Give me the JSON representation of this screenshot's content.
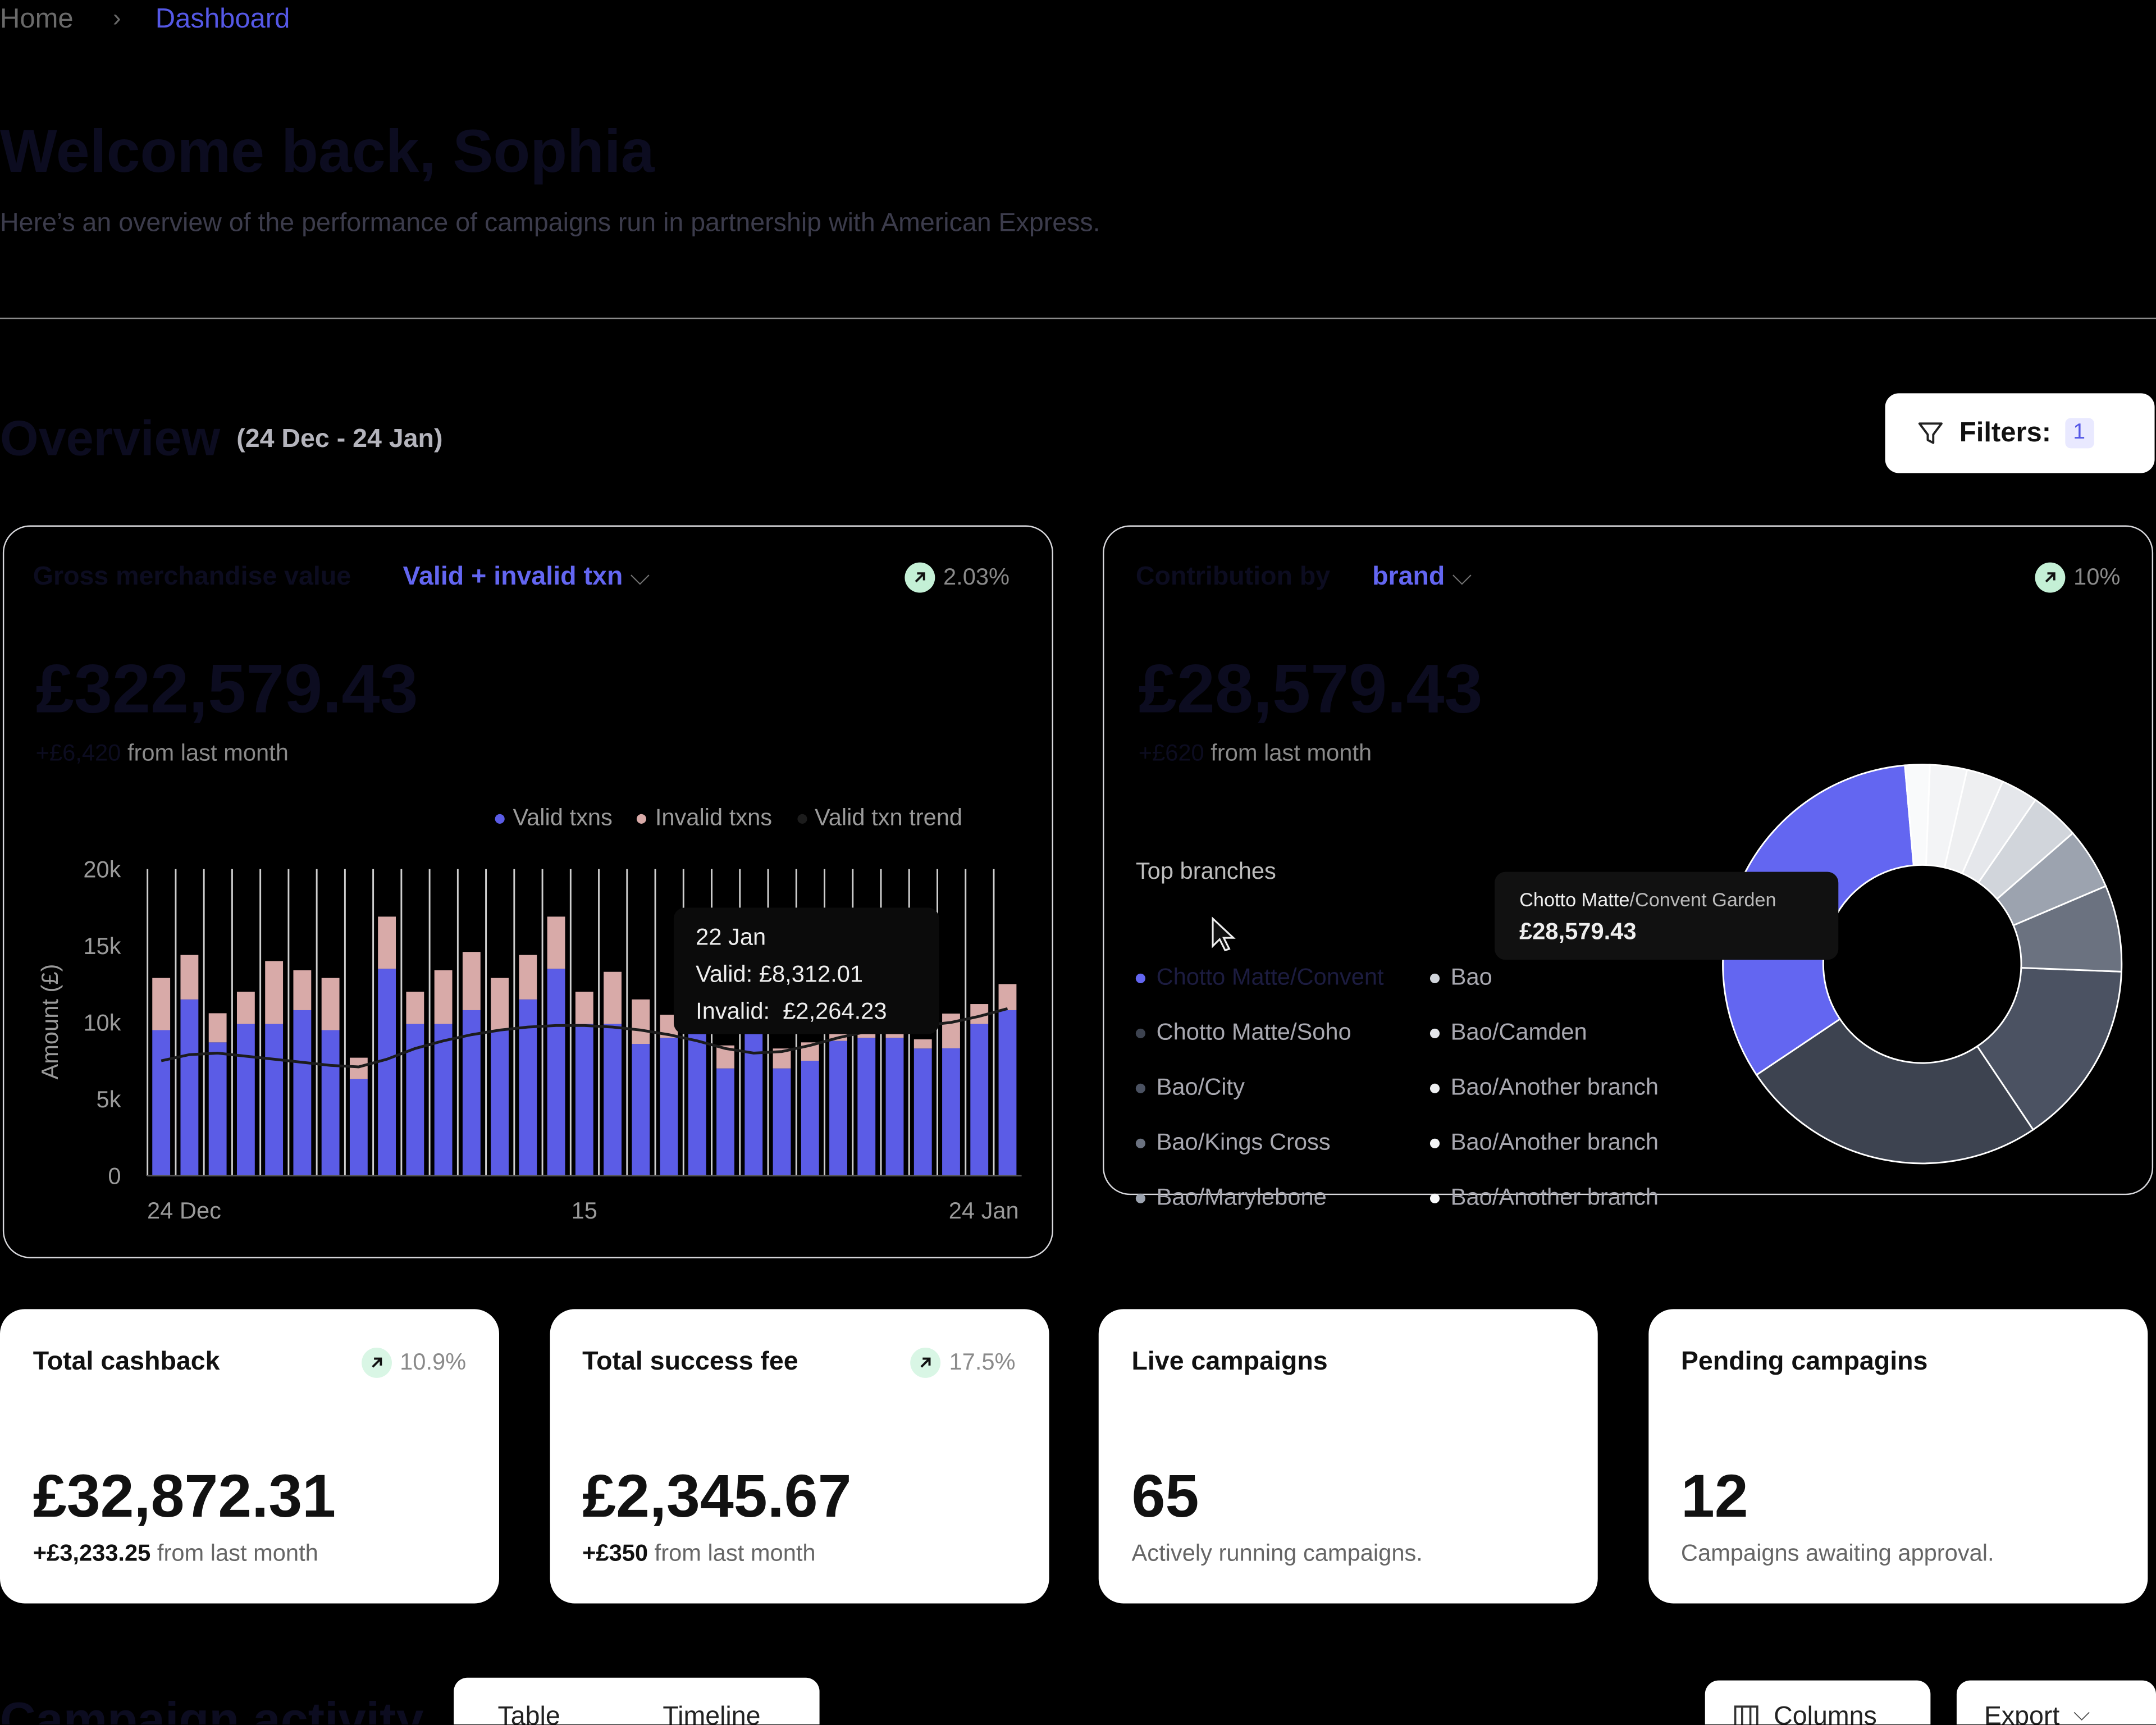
{
  "breadcrumb": {
    "home": "Home",
    "current": "Dashboard"
  },
  "header": {
    "title": "Welcome back, Sophia",
    "subtitle": "Here’s an overview of the performance of campaigns run in partnership with American Express."
  },
  "overview": {
    "title": "Overview",
    "range": "(24 Dec - 24 Jan)",
    "filters_label": "Filters:",
    "filters_count": 1
  },
  "gmv_card": {
    "title": "Gross merchandise value",
    "selector": "Valid + invalid txn",
    "trend": "2.03%",
    "amount": "£322,579.43",
    "change": "+£6,420",
    "change_suffix": "from last month",
    "chart": {
      "type": "bar",
      "stacked": true,
      "ylabel": "Amount (£)",
      "categories": [
        "24 Dec",
        null,
        null,
        null,
        null,
        null,
        null,
        null,
        null,
        null,
        null,
        null,
        null,
        null,
        null,
        "15",
        null,
        null,
        null,
        null,
        null,
        null,
        null,
        null,
        null,
        null,
        null,
        null,
        null,
        null,
        "24 Jan"
      ],
      "series": [
        {
          "name": "Valid txns",
          "color": "#5b5ce6",
          "values": [
            9500,
            11500,
            8700,
            9900,
            9900,
            10800,
            9500,
            6300,
            13500,
            9900,
            9900,
            10800,
            9500,
            11500,
            13500,
            9900,
            9900,
            8600,
            9000,
            9500,
            7000,
            9500,
            7000,
            7500,
            8800,
            9000,
            9000,
            8300,
            8312.01,
            9900,
            10800
          ]
        },
        {
          "name": "Invalid txns",
          "color": "#d8aaa8",
          "values": [
            3400,
            2900,
            1900,
            2100,
            4100,
            2600,
            3400,
            1400,
            3400,
            2100,
            3500,
            3800,
            3400,
            2900,
            3400,
            2100,
            3400,
            2900,
            1500,
            1200,
            1500,
            1500,
            1300,
            1200,
            1000,
            800,
            800,
            600,
            2264.23,
            1300,
            1700
          ]
        },
        {
          "name": "Valid txn trend",
          "color": "#1c1c1c",
          "type": "line",
          "values": [
            7500,
            7900,
            8000,
            7800,
            7600,
            7400,
            7200,
            7100,
            7600,
            8300,
            8800,
            9200,
            9500,
            9700,
            9800,
            9800,
            9700,
            9500,
            9200,
            8800,
            8300,
            8000,
            8100,
            8500,
            9000,
            9400,
            9600,
            9800,
            10000,
            10400,
            10900
          ]
        }
      ],
      "ylim": [
        0,
        20000
      ],
      "yticks": [
        0,
        {
          "value": 5000,
          "label": "5k"
        },
        {
          "value": 10000,
          "label": "10k"
        },
        {
          "value": 15000,
          "label": "15k"
        },
        {
          "value": 20000,
          "label": "20k"
        }
      ]
    },
    "tooltip": {
      "date": "22 Jan",
      "valid_label": "Valid:",
      "valid": "£8,312.01",
      "invalid_label": "Invalid:",
      "invalid": "£2,264.23"
    }
  },
  "contribution_card": {
    "title": "Contribution by",
    "selector": "brand",
    "trend": "10%",
    "amount": "£28,579.43",
    "change": "+£620",
    "change_suffix": "from last month",
    "legend_title": "Top branches",
    "chart": {
      "type": "pie",
      "categories": [
        "Chotto Matte/Convent",
        "Chotto Matte/Soho",
        "Bao/City",
        "Bao/Kings Cross",
        "Bao/Marylebone",
        "Bao",
        "Bao/Camden",
        "Bao/Another branch",
        "Bao/Another branch",
        "Bao/Another branch"
      ],
      "values": [
        33,
        25,
        15,
        7,
        5,
        4,
        3,
        3,
        3,
        2
      ],
      "colors": [
        "#6366f1",
        "#3d4350",
        "#4b5262",
        "#6b7280",
        "#9ca3af",
        "#d1d5db",
        "#e5e7eb",
        "#eeeff1",
        "#f3f4f6",
        "#f9fafb"
      ]
    },
    "tooltip": {
      "brand": "Chotto Matte",
      "branch": "/Convent Garden",
      "value": "£28,579.43"
    }
  },
  "stat_cards": [
    {
      "title": "Total cashback",
      "trend": "10.9%",
      "value": "£32,872.31",
      "change": "+£3,233.25",
      "note": "from last month"
    },
    {
      "title": "Total success fee",
      "trend": "17.5%",
      "value": "£2,345.67",
      "change": "+£350",
      "note": "from last month"
    },
    {
      "title": "Live campaigns",
      "value": 65,
      "note": "Actively running campaigns."
    },
    {
      "title": "Pending campagins",
      "value": 12,
      "note": "Campaigns awaiting approval."
    }
  ],
  "activity": {
    "title": "Campaign activity",
    "tabs": [
      "Table",
      "Timeline"
    ],
    "columns": "Columns",
    "export": "Export"
  }
}
